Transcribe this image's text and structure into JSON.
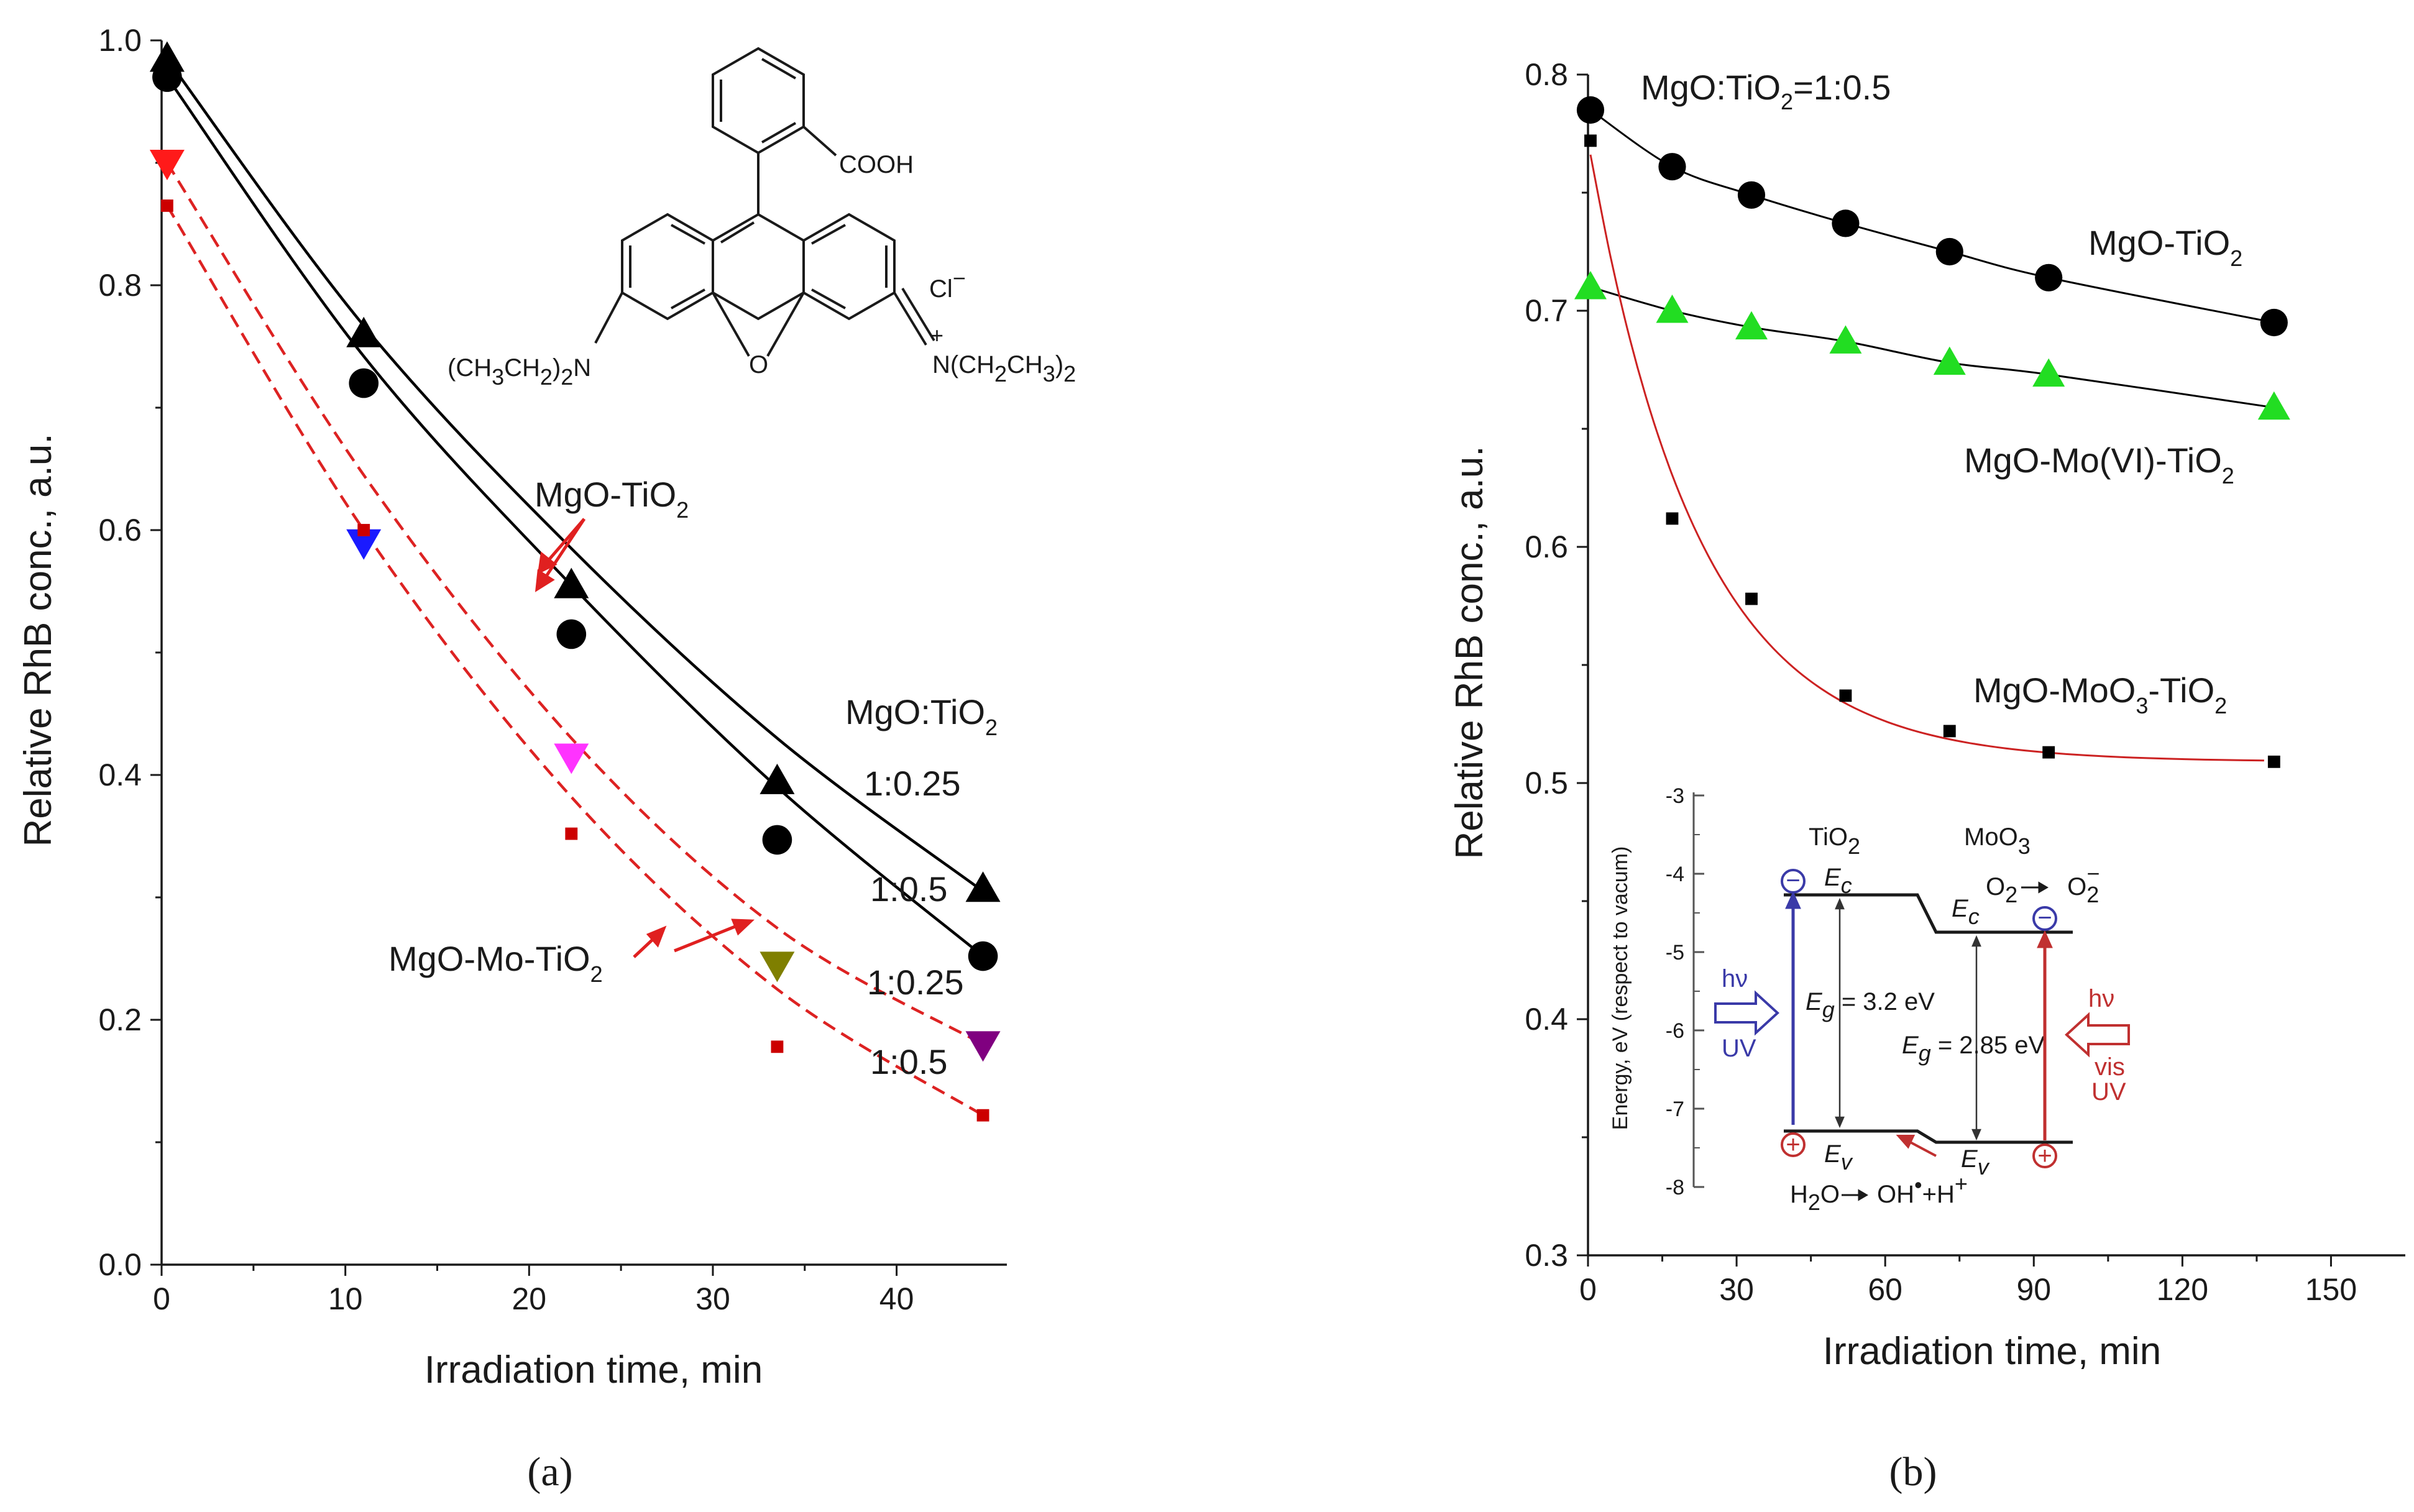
{
  "chart_data": [
    {
      "type": "scatter",
      "panel": "(a)",
      "xlabel": "Irradiation time, min",
      "ylabel": "Relative RhB conc., a.u.",
      "xlim": [
        0,
        46
      ],
      "ylim": [
        0,
        1.0
      ],
      "xticks": [
        0,
        10,
        20,
        30,
        40
      ],
      "yticks": [
        0.0,
        0.2,
        0.4,
        0.6,
        0.8,
        1.0
      ],
      "series": [
        {
          "name": "MgO-TiO2 1:0.25",
          "marker": "triangle-up",
          "fit": "solid",
          "color": "#000000",
          "x": [
            0.3,
            11,
            22.3,
            33.5,
            44.7
          ],
          "values": [
            0.985,
            0.76,
            0.555,
            0.395,
            0.307
          ],
          "fit_values": [
            0.985,
            0.767,
            0.585,
            0.43,
            0.305
          ]
        },
        {
          "name": "MgO-TiO2 1:0.5",
          "marker": "circle",
          "fit": "solid",
          "color": "#000000",
          "x": [
            0.3,
            11,
            22.3,
            33.5,
            44.7
          ],
          "values": [
            0.97,
            0.72,
            0.515,
            0.347,
            0.252
          ],
          "fit_values": [
            0.97,
            0.742,
            0.555,
            0.39,
            0.252
          ]
        },
        {
          "name": "MgO-Mo-TiO2 1:0.25",
          "marker": "triangle-down",
          "fit": "dashed",
          "color": "#cc0000",
          "x": [
            0.3,
            11,
            22.3,
            33.5,
            44.7
          ],
          "values": [
            0.9,
            0.59,
            0.415,
            0.245,
            0.18
          ],
          "point_colors": [
            "#ff1a1a",
            "#1a1aff",
            "#ff33ff",
            "#7f7f00",
            "#800080"
          ],
          "fit_values": [
            0.9,
            0.645,
            0.43,
            0.275,
            0.18
          ]
        },
        {
          "name": "MgO-Mo-TiO2 1:0.5",
          "marker": "square",
          "fit": "dashed",
          "color": "#cc0000",
          "x": [
            0.3,
            11,
            22.3,
            33.5,
            44.7
          ],
          "values": [
            0.865,
            0.6,
            0.352,
            0.178,
            0.122
          ],
          "fit_values": [
            0.865,
            0.6,
            0.382,
            0.225,
            0.122
          ]
        }
      ]
    },
    {
      "type": "scatter",
      "panel": "(b)",
      "xlabel": "Irradiation time, min",
      "ylabel": "Relative RhB conc., a.u.",
      "xlim": [
        0,
        165
      ],
      "ylim": [
        0.3,
        0.8
      ],
      "xticks": [
        0,
        30,
        60,
        90,
        120,
        150
      ],
      "yticks": [
        0.3,
        0.4,
        0.5,
        0.6,
        0.7,
        0.8
      ],
      "series": [
        {
          "name": "MgO-TiO2",
          "marker": "circle",
          "color": "#000000",
          "fit_color": "#000000",
          "x": [
            0.5,
            17,
            33,
            52,
            73,
            93,
            138.5
          ],
          "values": [
            0.785,
            0.761,
            0.749,
            0.737,
            0.725,
            0.714,
            0.695
          ]
        },
        {
          "name": "MgO-Mo(VI)-TiO2",
          "marker": "triangle-up",
          "color": "#22dd22",
          "fit_color": "#000000",
          "x": [
            0.5,
            17,
            33,
            52,
            73,
            93,
            138.5
          ],
          "values": [
            0.71,
            0.7,
            0.693,
            0.687,
            0.678,
            0.673,
            0.659
          ]
        },
        {
          "name": "MgO-MoO3-TiO2",
          "marker": "square",
          "color": "#000000",
          "fit_color": "#cc2222",
          "x": [
            0.5,
            17,
            33,
            52,
            73,
            93,
            138.5
          ],
          "values": [
            0.772,
            0.612,
            0.578,
            0.537,
            0.522,
            0.513,
            0.509
          ]
        }
      ]
    }
  ],
  "panel_a": {
    "caption": "(a)",
    "xlabel": "Irradiation time, min",
    "ylabel": "Relative RhB conc., a.u.",
    "label_mgo_tio2": "MgO-TiO",
    "label_mgo_mo_tio2": "MgO-Mo-TiO",
    "subscript_2": "2",
    "ratio_header_main": "MgO:TiO",
    "ratio_header_sub": "2",
    "ratio_1": "1:0.25",
    "ratio_2": "1:0.5",
    "ratio_3": "1:0.25",
    "ratio_4": "1:0.5",
    "molecule_cooh": "COOH",
    "molecule_cl": "Cl",
    "molecule_cl_charge": "−",
    "molecule_left_group": "(CH",
    "molecule_left_3": "3",
    "molecule_left_ch2": "CH",
    "molecule_left_2a": "2",
    "molecule_left_close": ")",
    "molecule_left_2b": "2",
    "molecule_left_n": "N",
    "molecule_o": "O",
    "molecule_right_n": "N(CH",
    "molecule_right_plus": "+",
    "molecule_right_2a": "2",
    "molecule_right_ch3": "CH",
    "molecule_right_3": "3",
    "molecule_right_close": ")",
    "molecule_right_2b": "2"
  },
  "panel_b": {
    "caption": "(b)",
    "xlabel": "Irradiation time, min",
    "ylabel": "Relative RhB conc., a.u.",
    "title_main": "MgO:TiO",
    "title_sub": "2",
    "title_tail": "=1:0.5",
    "label_1_main": "MgO-TiO",
    "label_1_sub": "2",
    "label_2_main": "MgO-Mo(VI)-TiO",
    "label_2_sub": "2",
    "label_3_main": "MgO-MoO",
    "label_3_sub3": "3",
    "label_3_mid": "-TiO",
    "label_3_sub": "2",
    "inset": {
      "ylabel": "Energy, eV (respect to vacum)",
      "yticks": [
        "-3",
        "-4",
        "-5",
        "-6",
        "-7",
        "-8"
      ],
      "tio2_main": "TiO",
      "tio2_sub": "2",
      "moo3_main": "MoO",
      "moo3_sub": "3",
      "ec": "E",
      "ec_sub": "c",
      "ev": "E",
      "ev_sub": "v",
      "eg1_e": "E",
      "eg1_sub": "g",
      "eg1_val": " = 3.2 eV",
      "eg2_e": "E",
      "eg2_sub": "g",
      "eg2_val": " = 2.85 eV",
      "o2_left": "O",
      "o2_left_sub": "2",
      "o2_right": "O",
      "o2_right_sub": "2",
      "o2_right_sup": "−",
      "hv": "hν",
      "uv": "UV",
      "vis": "vis",
      "water": "H",
      "water_sub": "2",
      "water_o": "O",
      "oh": "OH",
      "oh_dot": "•",
      "plus_h": "+H",
      "plus_sup": "+",
      "minus_sign": "−",
      "plus_sign": "+"
    }
  }
}
